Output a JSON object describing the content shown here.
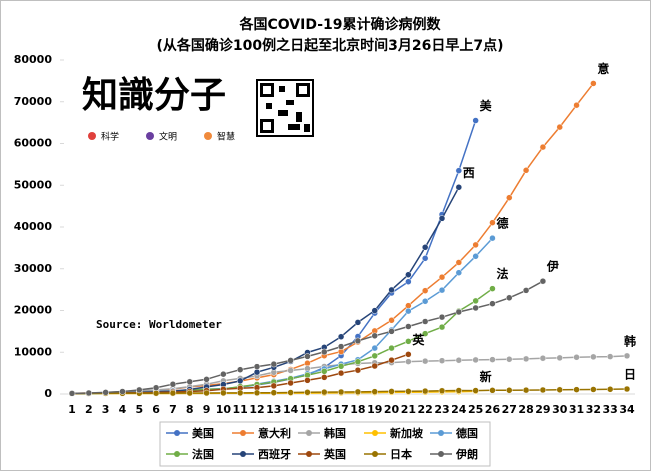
{
  "chart_data": {
    "type": "line",
    "title": "各国COVID-19累计确诊病例数",
    "subtitle": "(从各国确诊100例之日起至北京时间3月26日早上7点)",
    "source": "Source: Worldometer",
    "logo": {
      "title": "知識分子",
      "tags": [
        {
          "text": "科学",
          "color": "#e0403c"
        },
        {
          "text": "文明",
          "color": "#6a3fa0"
        },
        {
          "text": "智慧",
          "color": "#f08a3c"
        }
      ]
    },
    "categories": [
      "1",
      "2",
      "3",
      "4",
      "5",
      "6",
      "7",
      "8",
      "9",
      "10",
      "11",
      "12",
      "13",
      "14",
      "15",
      "16",
      "17",
      "18",
      "19",
      "20",
      "21",
      "22",
      "23",
      "24",
      "25",
      "26",
      "27",
      "28",
      "29",
      "30",
      "31",
      "32",
      "33",
      "34"
    ],
    "ylim": [
      0,
      80000
    ],
    "yticks": [
      0,
      10000,
      20000,
      30000,
      40000,
      50000,
      60000,
      70000,
      80000
    ],
    "grid": false,
    "series": [
      {
        "name": "美国",
        "end_label": "美",
        "color": "#4472c4",
        "values": [
          100,
          124,
          158,
          221,
          319,
          435,
          541,
          704,
          994,
          1301,
          1630,
          2183,
          2770,
          3613,
          4596,
          6344,
          9197,
          13779,
          19367,
          24192,
          26900,
          32500,
          43000,
          53500,
          65500,
          null,
          null,
          null,
          null,
          null,
          null,
          null,
          null,
          null
        ]
      },
      {
        "name": "意大利",
        "end_label": "意",
        "color": "#ed7d31",
        "values": [
          155,
          229,
          322,
          400,
          650,
          888,
          1128,
          1694,
          2036,
          2502,
          3089,
          3858,
          4636,
          5883,
          7375,
          9172,
          10149,
          12462,
          15113,
          17660,
          21157,
          24747,
          27980,
          31506,
          35713,
          41035,
          47021,
          53578,
          59138,
          63927,
          69176,
          74386,
          null,
          null
        ]
      },
      {
        "name": "韩国",
        "end_label": "韩",
        "color": "#a5a5a5",
        "values": [
          104,
          204,
          346,
          602,
          763,
          977,
          1261,
          1766,
          2337,
          3150,
          3736,
          4335,
          5186,
          5621,
          6088,
          6593,
          7041,
          7314,
          7478,
          7513,
          7755,
          7869,
          7979,
          8086,
          8162,
          8236,
          8320,
          8413,
          8565,
          8652,
          8799,
          8897,
          8961,
          9137
        ]
      },
      {
        "name": "新加坡",
        "end_label": "新",
        "color": "#ffc000",
        "values": [
          102,
          106,
          108,
          110,
          112,
          117,
          130,
          138,
          150,
          160,
          178,
          178,
          200,
          212,
          226,
          243,
          266,
          313,
          345,
          385,
          432,
          455,
          509,
          558,
          631,
          null,
          null,
          null,
          null,
          null,
          null,
          null,
          null,
          null
        ]
      },
      {
        "name": "德国",
        "end_label": "德",
        "color": "#5b9bd5",
        "values": [
          117,
          150,
          188,
          240,
          400,
          639,
          795,
          902,
          1139,
          1296,
          1567,
          2369,
          3062,
          3795,
          4838,
          6012,
          7156,
          8198,
          10999,
          15320,
          19848,
          22213,
          24873,
          29056,
          32986,
          37323,
          null,
          null,
          null,
          null,
          null,
          null,
          null,
          null
        ]
      },
      {
        "name": "法国",
        "end_label": "法",
        "color": "#70ad47",
        "values": [
          100,
          130,
          191,
          204,
          285,
          377,
          653,
          949,
          1126,
          1209,
          1784,
          2281,
          2876,
          3661,
          4499,
          5423,
          6633,
          7730,
          9134,
          10995,
          12612,
          14459,
          16018,
          19856,
          22302,
          25233,
          null,
          null,
          null,
          null,
          null,
          null,
          null,
          null
        ]
      },
      {
        "name": "西班牙",
        "end_label": "西",
        "color": "#264478",
        "values": [
          120,
          165,
          222,
          259,
          400,
          500,
          673,
          1073,
          1695,
          2277,
          3146,
          5232,
          6391,
          7798,
          9942,
          11178,
          13716,
          17147,
          19980,
          24926,
          28572,
          35136,
          42058,
          49515,
          null,
          null,
          null,
          null,
          null,
          null,
          null,
          null,
          null,
          null
        ]
      },
      {
        "name": "英国",
        "end_label": "英",
        "color": "#9e480e",
        "values": [
          115,
          160,
          210,
          270,
          320,
          380,
          460,
          590,
          800,
          1140,
          1390,
          1540,
          1950,
          2630,
          3270,
          3980,
          5000,
          5700,
          6700,
          8100,
          9500,
          null,
          null,
          null,
          null,
          null,
          null,
          null,
          null,
          null,
          null,
          null,
          null,
          null
        ]
      },
      {
        "name": "日本",
        "end_label": "日",
        "color": "#997300",
        "values": [
          105,
          132,
          144,
          157,
          164,
          186,
          210,
          230,
          239,
          254,
          268,
          284,
          317,
          349,
          408,
          455,
          488,
          514,
          568,
          619,
          639,
          701,
          773,
          839,
          825,
          878,
          889,
          924,
          963,
          1007,
          1046,
          1089,
          1128,
          1193
        ]
      },
      {
        "name": "伊朗",
        "end_label": "伊",
        "color": "#636363",
        "values": [
          139,
          245,
          388,
          593,
          978,
          1501,
          2336,
          2922,
          3513,
          4747,
          5823,
          6566,
          7161,
          8042,
          9000,
          10075,
          11364,
          12729,
          13938,
          14991,
          16169,
          17361,
          18407,
          19644,
          20610,
          21638,
          23049,
          24811,
          27017,
          null,
          null,
          null,
          null,
          null
        ]
      }
    ]
  }
}
